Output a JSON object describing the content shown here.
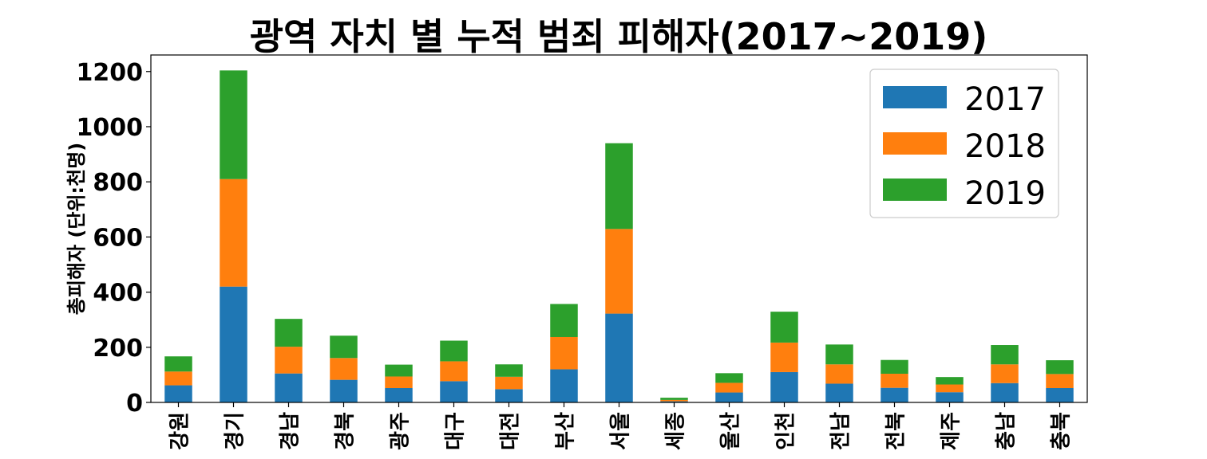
{
  "chart_data": {
    "type": "bar",
    "stacked": true,
    "title": "광역 자치 별 누적 범죄 피해자(2017~2019)",
    "xlabel": "",
    "ylabel": "총피해자 (단위:천명)",
    "ylim": [
      0,
      1260
    ],
    "yticks": [
      0,
      200,
      400,
      600,
      800,
      1000,
      1200
    ],
    "grid": false,
    "legend_position": "top-right",
    "categories": [
      "강원",
      "경기",
      "경남",
      "경북",
      "광주",
      "대구",
      "대전",
      "부산",
      "서울",
      "세종",
      "울산",
      "인천",
      "전남",
      "전북",
      "제주",
      "충남",
      "충북"
    ],
    "series": [
      {
        "name": "2017",
        "color": "#1f77b4",
        "values": [
          62,
          420,
          105,
          82,
          52,
          77,
          48,
          120,
          322,
          4,
          36,
          110,
          68,
          53,
          37,
          70,
          52
        ]
      },
      {
        "name": "2018",
        "color": "#ff7f0e",
        "values": [
          50,
          390,
          97,
          79,
          42,
          72,
          45,
          117,
          307,
          5,
          35,
          107,
          70,
          51,
          28,
          68,
          51
        ]
      },
      {
        "name": "2019",
        "color": "#2ca02c",
        "values": [
          55,
          394,
          101,
          81,
          43,
          75,
          45,
          120,
          311,
          8,
          35,
          112,
          72,
          50,
          27,
          70,
          50
        ]
      }
    ]
  }
}
